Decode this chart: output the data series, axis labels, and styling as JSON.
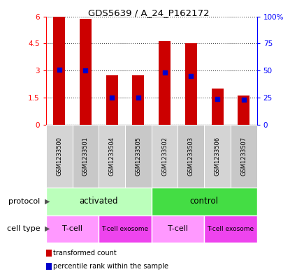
{
  "title": "GDS5639 / A_24_P162172",
  "samples": [
    "GSM1233500",
    "GSM1233501",
    "GSM1233504",
    "GSM1233505",
    "GSM1233502",
    "GSM1233503",
    "GSM1233506",
    "GSM1233507"
  ],
  "transformed_count": [
    5.97,
    5.85,
    2.75,
    2.75,
    4.65,
    4.5,
    2.0,
    1.6
  ],
  "percentile_rank_pct": [
    51,
    50,
    25,
    25,
    48,
    45,
    24,
    23
  ],
  "ylim_left": [
    0,
    6
  ],
  "ylim_right": [
    0,
    100
  ],
  "yticks_left": [
    0,
    1.5,
    3.0,
    4.5,
    6.0
  ],
  "yticks_left_labels": [
    "0",
    "1.5",
    "3",
    "4.5",
    "6"
  ],
  "yticks_right": [
    0,
    25,
    50,
    75,
    100
  ],
  "yticks_right_labels": [
    "0",
    "25",
    "50",
    "75",
    "100%"
  ],
  "bar_color": "#cc0000",
  "dot_color": "#0000cc",
  "protocol_groups": [
    {
      "label": "activated",
      "start": 0,
      "end": 4,
      "color": "#bbffbb"
    },
    {
      "label": "control",
      "start": 4,
      "end": 8,
      "color": "#44dd44"
    }
  ],
  "cell_type_groups": [
    {
      "label": "T-cell",
      "start": 0,
      "end": 2,
      "color": "#ff99ff"
    },
    {
      "label": "T-cell exosome",
      "start": 2,
      "end": 4,
      "color": "#ee44ee"
    },
    {
      "label": "T-cell",
      "start": 4,
      "end": 6,
      "color": "#ff99ff"
    },
    {
      "label": "T-cell exosome",
      "start": 6,
      "end": 8,
      "color": "#ee44ee"
    }
  ],
  "protocol_label": "protocol",
  "cell_type_label": "cell type",
  "bar_width": 0.45,
  "sample_col_colors": [
    "#d4d4d4",
    "#c8c8c8"
  ],
  "legend_items": [
    {
      "label": "transformed count",
      "color": "#cc0000"
    },
    {
      "label": "percentile rank within the sample",
      "color": "#0000cc"
    }
  ]
}
